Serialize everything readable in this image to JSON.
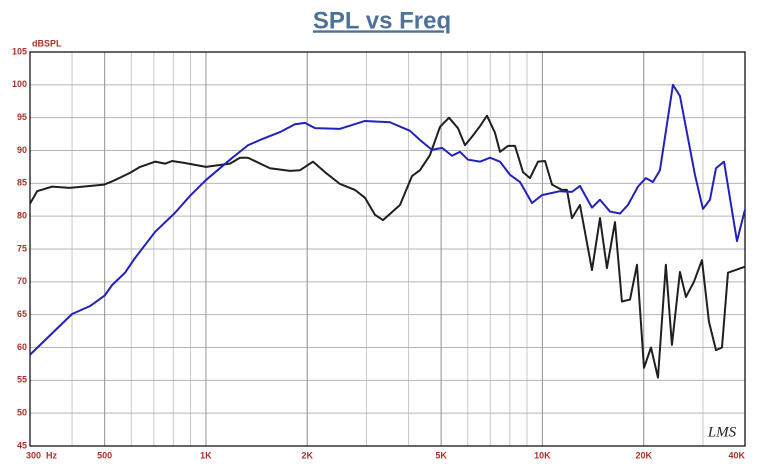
{
  "chart_data": {
    "type": "line",
    "title": "SPL vs Freq",
    "y_label": "dBSPL",
    "annotation": "LMS",
    "xscale": "log",
    "grid": true,
    "xlim": [
      300,
      40000
    ],
    "ylim": [
      45,
      105
    ],
    "xticks": [
      {
        "value": 300,
        "label": "300  Hz"
      },
      500,
      {
        "value": 1000,
        "label": "1K"
      },
      {
        "value": 2000,
        "label": "2K"
      },
      {
        "value": 5000,
        "label": "5K"
      },
      {
        "value": 10000,
        "label": "10K"
      },
      {
        "value": 20000,
        "label": "20K"
      },
      {
        "value": 40000,
        "label": "40K"
      }
    ],
    "yticks": [
      45,
      50,
      55,
      60,
      65,
      70,
      75,
      80,
      85,
      90,
      95,
      100,
      105
    ],
    "series": [
      {
        "color": "#1f1f1f",
        "x": [
          300,
          315,
          349,
          394,
          498,
          537,
          595,
          637,
          706,
          756,
          793,
          866,
          1000,
          1179,
          1262,
          1333,
          1550,
          1778,
          1904,
          2080,
          2258,
          2503,
          2773,
          2969,
          3180,
          3358,
          3773,
          4096,
          4327,
          4632,
          4962,
          5277,
          5610,
          5887,
          6175,
          6522,
          6842,
          7228,
          7480,
          7902,
          8289,
          8758,
          9183,
          9703,
          10180,
          10680,
          11430,
          11830,
          12240,
          12930,
          14040,
          14830,
          15550,
          16430,
          17230,
          18210,
          19100,
          20040,
          21020,
          22050,
          23270,
          24260,
          25630,
          26700,
          28200,
          29800,
          31260,
          32800,
          34170,
          35600,
          40000
        ],
        "values": [
          81.9,
          83.8,
          84.5,
          84.3,
          84.8,
          85.5,
          86.6,
          87.5,
          88.3,
          88,
          88.4,
          88.1,
          87.5,
          88,
          88.9,
          88.9,
          87.3,
          86.9,
          87,
          88.3,
          86.7,
          84.9,
          84,
          82.8,
          80.2,
          79.4,
          81.7,
          86.1,
          87,
          89.3,
          93.6,
          95,
          93.4,
          90.8,
          92.1,
          93.7,
          95.3,
          92.7,
          89.8,
          90.7,
          90.7,
          86.7,
          85.8,
          88.3,
          88.4,
          84.8,
          84,
          84,
          79.7,
          81.7,
          71.8,
          79.7,
          72.1,
          79.1,
          67,
          67.3,
          72.6,
          56.9,
          60,
          55.4,
          72.6,
          60.4,
          71.5,
          67.7,
          70,
          73.3,
          63.9,
          59.6,
          60,
          71.4,
          72.3
        ]
      },
      {
        "color": "#2222b8",
        "x": [
          300,
          400,
          452,
          500,
          526,
          575,
          615,
          706,
          809,
          897,
          1000,
          1179,
          1333,
          1448,
          1660,
          1839,
          1970,
          2109,
          2503,
          2969,
          3522,
          4041,
          4327,
          4696,
          5031,
          5388,
          5689,
          6010,
          6522,
          6985,
          7480,
          8010,
          8578,
          9310,
          9970,
          11270,
          12240,
          12930,
          14040,
          14830,
          15880,
          17000,
          17950,
          19230,
          20300,
          21300,
          22350,
          24430,
          25630,
          28400,
          30000,
          31470,
          32800,
          34650,
          37860,
          40000
        ],
        "values": [
          58.9,
          65.1,
          66.3,
          67.9,
          69.5,
          71.4,
          73.6,
          77.6,
          80.5,
          83.1,
          85.5,
          88.6,
          90.8,
          91.6,
          92.8,
          94,
          94.2,
          93.4,
          93.3,
          94.5,
          94.3,
          93,
          91.6,
          90.1,
          90.4,
          89.2,
          89.8,
          88.6,
          88.3,
          88.9,
          88.3,
          86.3,
          85.2,
          82,
          83.2,
          83.8,
          83.7,
          84.6,
          81.3,
          82.5,
          80.7,
          80.4,
          81.7,
          84.5,
          85.8,
          85.2,
          87,
          100,
          98.3,
          86.3,
          81.1,
          82.5,
          87.3,
          88.3,
          76.2,
          81
        ]
      }
    ]
  }
}
